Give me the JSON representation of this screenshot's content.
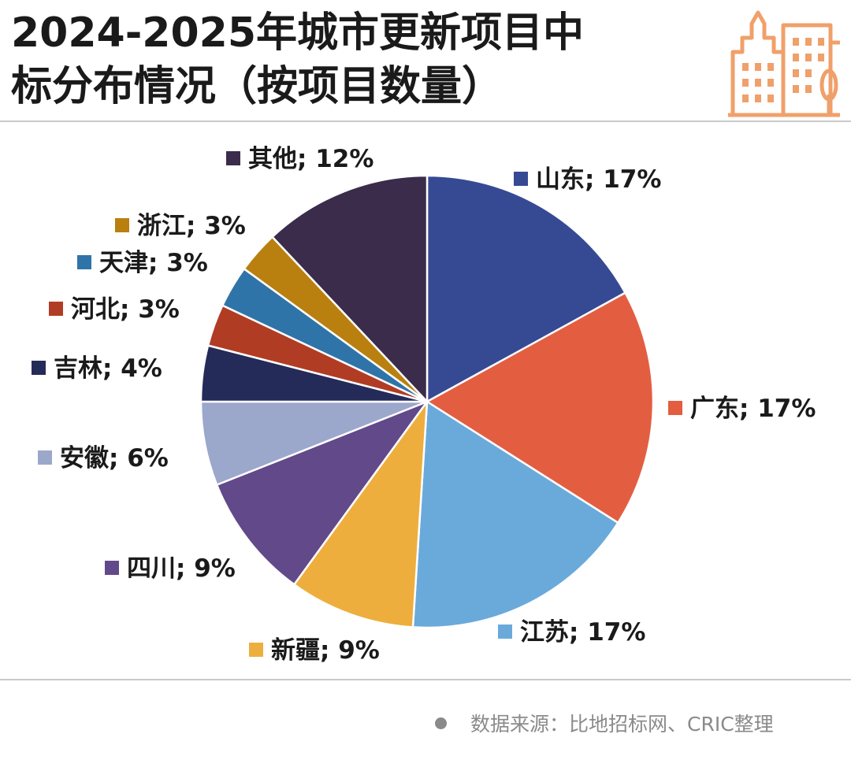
{
  "header": {
    "title_line1": "2024-2025年城市更新项目中",
    "title_line2": "标分布情况（按项目数量）",
    "logo_icon": "city-buildings-icon",
    "logo_color": "#f0a06a"
  },
  "footer": {
    "source": "数据来源：比地招标网、CRIC整理",
    "bullet_icon": "bullet-dot-icon"
  },
  "chart_data": {
    "type": "pie",
    "title": "",
    "start_angle_deg": 0,
    "direction": "clockwise",
    "slices": [
      {
        "label": "山东; 17%",
        "value": 17,
        "color": "#364a94"
      },
      {
        "label": "广东; 17%",
        "value": 17,
        "color": "#e35e41"
      },
      {
        "label": "江苏; 17%",
        "value": 17,
        "color": "#6aaadb"
      },
      {
        "label": "新疆; 9%",
        "value": 9,
        "color": "#eeae3d"
      },
      {
        "label": "四川; 9%",
        "value": 9,
        "color": "#62498a"
      },
      {
        "label": "安徽; 6%",
        "value": 6,
        "color": "#9ca7cc"
      },
      {
        "label": "吉林; 4%",
        "value": 4,
        "color": "#252b58"
      },
      {
        "label": "河北; 3%",
        "value": 3,
        "color": "#b13c24"
      },
      {
        "label": "天津; 3%",
        "value": 3,
        "color": "#2f74a8"
      },
      {
        "label": "浙江; 3%",
        "value": 3,
        "color": "#b9800f"
      },
      {
        "label": "其他; 12%",
        "value": 12,
        "color": "#3b2c4c"
      }
    ]
  }
}
